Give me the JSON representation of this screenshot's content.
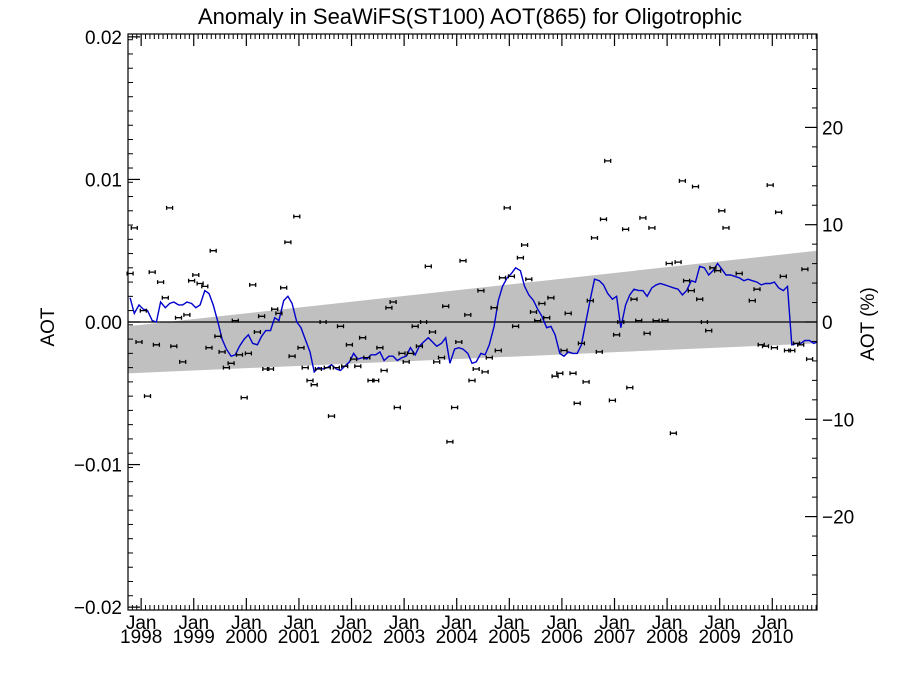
{
  "chart_data": {
    "type": "scatter",
    "title": "Anomaly in SeaWiFS(ST100) AOT(865) for Oligotrophic",
    "ylabel": "AOT",
    "ylabel_right": "AOT (%)",
    "xlabel": "",
    "xlim": [
      1997.75,
      2010.85
    ],
    "ylim": [
      -0.0202,
      0.0202
    ],
    "y2lim": [
      -29.6,
      29.6
    ],
    "y_ticks": [
      {
        "value": 0.02,
        "label": "0.02"
      },
      {
        "value": 0.01,
        "label": "0.01"
      },
      {
        "value": 0.0,
        "label": "0.00"
      },
      {
        "value": -0.01,
        "label": "−0.01"
      },
      {
        "value": -0.02,
        "label": "−0.02"
      }
    ],
    "y2_ticks": [
      {
        "value": 20,
        "label": "20"
      },
      {
        "value": 10,
        "label": "10"
      },
      {
        "value": 0,
        "label": "0"
      },
      {
        "value": -10,
        "label": "−10"
      },
      {
        "value": -20,
        "label": "−20"
      }
    ],
    "x_ticks": [
      {
        "value": 1998,
        "month": "Jan",
        "year": "1998"
      },
      {
        "value": 1999,
        "month": "Jan",
        "year": "1999"
      },
      {
        "value": 2000,
        "month": "Jan",
        "year": "2000"
      },
      {
        "value": 2001,
        "month": "Jan",
        "year": "2001"
      },
      {
        "value": 2002,
        "month": "Jan",
        "year": "2002"
      },
      {
        "value": 2003,
        "month": "Jan",
        "year": "2003"
      },
      {
        "value": 2004,
        "month": "Jan",
        "year": "2004"
      },
      {
        "value": 2005,
        "month": "Jan",
        "year": "2005"
      },
      {
        "value": 2006,
        "month": "Jan",
        "year": "2006"
      },
      {
        "value": 2007,
        "month": "Jan",
        "year": "2007"
      },
      {
        "value": 2008,
        "month": "Jan",
        "year": "2008"
      },
      {
        "value": 2009,
        "month": "Jan",
        "year": "2009"
      },
      {
        "value": 2010,
        "month": "Jan",
        "year": "2010"
      }
    ],
    "reference_line": 0,
    "grid": false,
    "colors": {
      "line": "#0000cc",
      "band": "#c0c0c0",
      "points": "#000000",
      "zero_line": "#000000"
    },
    "trend_band": {
      "x": [
        1997.75,
        2010.85
      ],
      "lower": [
        -0.0036,
        -0.0015
      ],
      "upper": [
        -0.0003,
        0.005
      ]
    },
    "points": [
      [
        1997.79,
        0.0034
      ],
      [
        1997.87,
        0.0066
      ],
      [
        1997.96,
        -0.0014
      ],
      [
        1998.04,
        0.0008
      ],
      [
        1998.12,
        -0.0052
      ],
      [
        1998.21,
        0.0035
      ],
      [
        1998.29,
        -0.0016
      ],
      [
        1998.37,
        0.0028
      ],
      [
        1998.46,
        0.0017
      ],
      [
        1998.54,
        0.008
      ],
      [
        1998.62,
        -0.0017
      ],
      [
        1998.71,
        0.0003
      ],
      [
        1998.79,
        -0.0028
      ],
      [
        1998.87,
        0.0005
      ],
      [
        1998.96,
        0.0029
      ],
      [
        1999.04,
        0.0033
      ],
      [
        1999.12,
        0.0027
      ],
      [
        1999.21,
        0.0025
      ],
      [
        1999.29,
        -0.0018
      ],
      [
        1999.37,
        0.005
      ],
      [
        1999.46,
        -0.001
      ],
      [
        1999.54,
        -0.0021
      ],
      [
        1999.62,
        -0.0032
      ],
      [
        1999.71,
        -0.0029
      ],
      [
        1999.79,
        0.0001
      ],
      [
        1999.87,
        -0.0023
      ],
      [
        1999.96,
        -0.0053
      ],
      [
        2000.04,
        -0.0022
      ],
      [
        2000.12,
        0.0026
      ],
      [
        2000.21,
        -0.0007
      ],
      [
        2000.29,
        0.0004
      ],
      [
        2000.37,
        -0.0033
      ],
      [
        2000.46,
        -0.0033
      ],
      [
        2000.54,
        0.0009
      ],
      [
        2000.62,
        0.0006
      ],
      [
        2000.71,
        0.0024
      ],
      [
        2000.79,
        0.0056
      ],
      [
        2000.87,
        -0.0024
      ],
      [
        2000.96,
        0.0074
      ],
      [
        2001.04,
        -0.0018
      ],
      [
        2001.12,
        -0.0032
      ],
      [
        2001.21,
        -0.0041
      ],
      [
        2001.29,
        -0.0044
      ],
      [
        2001.37,
        -0.0033
      ],
      [
        2001.46,
        0.0
      ],
      [
        2001.54,
        -0.0032
      ],
      [
        2001.62,
        -0.0066
      ],
      [
        2001.71,
        -0.0032
      ],
      [
        2001.79,
        -0.0003
      ],
      [
        2001.87,
        -0.0031
      ],
      [
        2001.96,
        -0.0016
      ],
      [
        2002.04,
        -0.0026
      ],
      [
        2002.12,
        -0.0031
      ],
      [
        2002.21,
        -0.0011
      ],
      [
        2002.29,
        -0.0025
      ],
      [
        2002.37,
        -0.0041
      ],
      [
        2002.46,
        -0.0041
      ],
      [
        2002.54,
        -0.0018
      ],
      [
        2002.62,
        -0.0034
      ],
      [
        2002.71,
        0.001
      ],
      [
        2002.79,
        0.0014
      ],
      [
        2002.87,
        -0.006
      ],
      [
        2002.96,
        -0.0022
      ],
      [
        2003.04,
        -0.0028
      ],
      [
        2003.12,
        -0.0022
      ],
      [
        2003.21,
        -0.0003
      ],
      [
        2003.29,
        -0.0017
      ],
      [
        2003.37,
        0.0
      ],
      [
        2003.46,
        0.0039
      ],
      [
        2003.54,
        -0.0007
      ],
      [
        2003.62,
        -0.0028
      ],
      [
        2003.71,
        -0.0025
      ],
      [
        2003.79,
        0.0011
      ],
      [
        2003.87,
        -0.0084
      ],
      [
        2003.96,
        -0.006
      ],
      [
        2004.04,
        -0.0014
      ],
      [
        2004.12,
        0.0043
      ],
      [
        2004.21,
        0.0005
      ],
      [
        2004.29,
        -0.0041
      ],
      [
        2004.37,
        -0.0033
      ],
      [
        2004.46,
        0.0022
      ],
      [
        2004.54,
        -0.0035
      ],
      [
        2004.62,
        -0.0025
      ],
      [
        2004.71,
        0.001
      ],
      [
        2004.79,
        -0.002
      ],
      [
        2004.87,
        0.0031
      ],
      [
        2004.96,
        0.008
      ],
      [
        2005.04,
        0.0032
      ],
      [
        2005.12,
        -0.0003
      ],
      [
        2005.21,
        0.0045
      ],
      [
        2005.29,
        0.0054
      ],
      [
        2005.37,
        0.003
      ],
      [
        2005.46,
        0.0007
      ],
      [
        2005.54,
        0.0001
      ],
      [
        2005.62,
        0.0013
      ],
      [
        2005.71,
        0.0003
      ],
      [
        2005.79,
        0.0017
      ],
      [
        2005.87,
        -0.0038
      ],
      [
        2005.96,
        -0.0036
      ],
      [
        2006.04,
        -0.002
      ],
      [
        2006.12,
        0.0006
      ],
      [
        2006.21,
        -0.0036
      ],
      [
        2006.29,
        -0.0057
      ],
      [
        2006.37,
        -0.0015
      ],
      [
        2006.46,
        -0.0042
      ],
      [
        2006.54,
        0.0015
      ],
      [
        2006.62,
        0.0059
      ],
      [
        2006.71,
        -0.0021
      ],
      [
        2006.79,
        0.0072
      ],
      [
        2006.87,
        0.0113
      ],
      [
        2006.96,
        -0.0055
      ],
      [
        2007.04,
        -0.0009
      ],
      [
        2007.12,
        0.0
      ],
      [
        2007.21,
        0.0065
      ],
      [
        2007.29,
        -0.0046
      ],
      [
        2007.37,
        0.0016
      ],
      [
        2007.46,
        0.0001
      ],
      [
        2007.54,
        0.0073
      ],
      [
        2007.62,
        -0.0008
      ],
      [
        2007.71,
        0.0066
      ],
      [
        2007.79,
        0.0001
      ],
      [
        2007.96,
        0.0001
      ],
      [
        2008.04,
        0.0041
      ],
      [
        2008.12,
        -0.0078
      ],
      [
        2008.21,
        0.0042
      ],
      [
        2008.29,
        0.0099
      ],
      [
        2008.37,
        0.0029
      ],
      [
        2008.46,
        0.0022
      ],
      [
        2008.54,
        0.0095
      ],
      [
        2008.62,
        0.0016
      ],
      [
        2008.71,
        0.0
      ],
      [
        2008.79,
        -0.0006
      ],
      [
        2008.87,
        0.0038
      ],
      [
        2008.96,
        0.0036
      ],
      [
        2009.04,
        0.0078
      ],
      [
        2009.12,
        0.0066
      ],
      [
        2009.37,
        0.0034
      ],
      [
        2009.62,
        0.0015
      ],
      [
        2009.71,
        0.0023
      ],
      [
        2009.79,
        -0.0016
      ],
      [
        2009.87,
        -0.0017
      ],
      [
        2009.96,
        0.0096
      ],
      [
        2010.04,
        -0.0018
      ],
      [
        2010.12,
        0.0077
      ],
      [
        2010.21,
        0.0032
      ],
      [
        2010.29,
        -0.002
      ],
      [
        2010.37,
        -0.002
      ],
      [
        2010.46,
        -0.0015
      ],
      [
        2010.54,
        -0.0016
      ],
      [
        2010.62,
        0.0037
      ],
      [
        2010.71,
        -0.0026
      ]
    ],
    "series": [
      {
        "type": "line",
        "x": [
          1997.79,
          1997.87,
          1997.96,
          1998.04,
          1998.12,
          1998.21,
          1998.29,
          1998.37,
          1998.46,
          1998.54,
          1998.62,
          1998.71,
          1998.79,
          1998.87,
          1998.96,
          1999.04,
          1999.12,
          1999.21,
          1999.29,
          1999.37,
          1999.46,
          1999.54,
          1999.62,
          1999.71,
          1999.79,
          1999.87,
          1999.96,
          2000.04,
          2000.12,
          2000.21,
          2000.29,
          2000.37,
          2000.46,
          2000.54,
          2000.62,
          2000.71,
          2000.79,
          2000.87,
          2000.96,
          2001.04,
          2001.12,
          2001.21,
          2001.29,
          2001.37,
          2001.46,
          2001.54,
          2001.62,
          2001.71,
          2001.79,
          2001.87,
          2001.96,
          2002.04,
          2002.12,
          2002.21,
          2002.29,
          2002.37,
          2002.46,
          2002.54,
          2002.62,
          2002.71,
          2002.79,
          2002.87,
          2002.96,
          2003.04,
          2003.12,
          2003.21,
          2003.29,
          2003.37,
          2003.46,
          2003.54,
          2003.62,
          2003.71,
          2003.79,
          2003.87,
          2003.96,
          2004.04,
          2004.12,
          2004.21,
          2004.29,
          2004.37,
          2004.46,
          2004.54,
          2004.62,
          2004.71,
          2004.79,
          2004.87,
          2004.96,
          2005.04,
          2005.12,
          2005.21,
          2005.29,
          2005.37,
          2005.46,
          2005.54,
          2005.62,
          2005.71,
          2005.79,
          2005.87,
          2005.96,
          2006.04,
          2006.12,
          2006.21,
          2006.29,
          2006.37,
          2006.46,
          2006.54,
          2006.62,
          2006.71,
          2006.79,
          2006.87,
          2006.96,
          2007.04,
          2007.12,
          2007.21,
          2007.29,
          2007.37,
          2007.46,
          2007.54,
          2007.62,
          2007.71,
          2007.79,
          2007.87,
          2007.96,
          2008.04,
          2008.12,
          2008.21,
          2008.29,
          2008.37,
          2008.46,
          2008.54,
          2008.62,
          2008.71,
          2008.79,
          2008.87,
          2008.96,
          2009.04,
          2009.12,
          2009.21,
          2009.29,
          2009.37,
          2009.46,
          2009.54,
          2009.62,
          2009.71,
          2009.79,
          2009.87,
          2009.96,
          2010.04,
          2010.12,
          2010.21,
          2010.29,
          2010.37,
          2010.46,
          2010.54,
          2010.62,
          2010.71,
          2010.79,
          2010.85
        ],
        "values": [
          0.0017,
          0.0006,
          0.0012,
          0.0009,
          0.0008,
          0.0001,
          0.0,
          0.0014,
          0.001,
          0.0013,
          0.0014,
          0.0012,
          0.0012,
          0.0014,
          0.0013,
          0.001,
          0.0012,
          0.0022,
          0.002,
          0.0012,
          0.0,
          -0.0012,
          -0.0019,
          -0.0024,
          -0.0023,
          -0.0017,
          -0.0012,
          -0.0009,
          -0.0015,
          -0.0016,
          -0.001,
          -0.0006,
          -0.0006,
          0.0003,
          0.0001,
          0.0015,
          0.0018,
          0.0013,
          0.0,
          -0.0004,
          -0.0012,
          -0.0021,
          -0.0035,
          -0.0032,
          -0.0033,
          -0.0032,
          -0.003,
          -0.0033,
          -0.0034,
          -0.0031,
          -0.0028,
          -0.0022,
          -0.0026,
          -0.0025,
          -0.0026,
          -0.0023,
          -0.0023,
          -0.0021,
          -0.0027,
          -0.0024,
          -0.0024,
          -0.0027,
          -0.0025,
          -0.0024,
          -0.0018,
          -0.0023,
          -0.0017,
          -0.0014,
          -0.0011,
          -0.0014,
          -0.0017,
          -0.0015,
          -0.0011,
          -0.0029,
          -0.0019,
          -0.0018,
          -0.0019,
          -0.0022,
          -0.0029,
          -0.0028,
          -0.0022,
          -0.0023,
          -0.0016,
          -0.0003,
          0.0015,
          0.0025,
          0.0031,
          0.0034,
          0.0038,
          0.0036,
          0.0025,
          0.0019,
          0.0015,
          0.0009,
          0.0004,
          -0.0004,
          -0.0003,
          -0.0009,
          -0.0022,
          -0.0024,
          -0.0021,
          -0.0022,
          -0.0022,
          -0.0016,
          0.0001,
          0.0016,
          0.003,
          0.0029,
          0.0026,
          0.002,
          0.0016,
          0.0018,
          -0.0004,
          0.0012,
          0.0019,
          0.0023,
          0.0022,
          0.0022,
          0.0018,
          0.0024,
          0.0026,
          0.0027,
          0.0026,
          0.0025,
          0.0024,
          0.0023,
          0.0019,
          0.0022,
          0.0029,
          0.0028,
          0.0039,
          0.0038,
          0.0033,
          0.0036,
          0.0041,
          0.0037,
          0.0033,
          0.0033,
          0.0032,
          0.0031,
          0.0029,
          0.003,
          0.0029,
          0.0028,
          0.0026,
          0.0027,
          0.0027,
          0.0028,
          0.0024,
          0.0022,
          0.0025,
          -0.0016,
          -0.0015,
          -0.0015,
          -0.0013,
          -0.0013,
          -0.0015,
          -0.0014
        ]
      }
    ]
  }
}
